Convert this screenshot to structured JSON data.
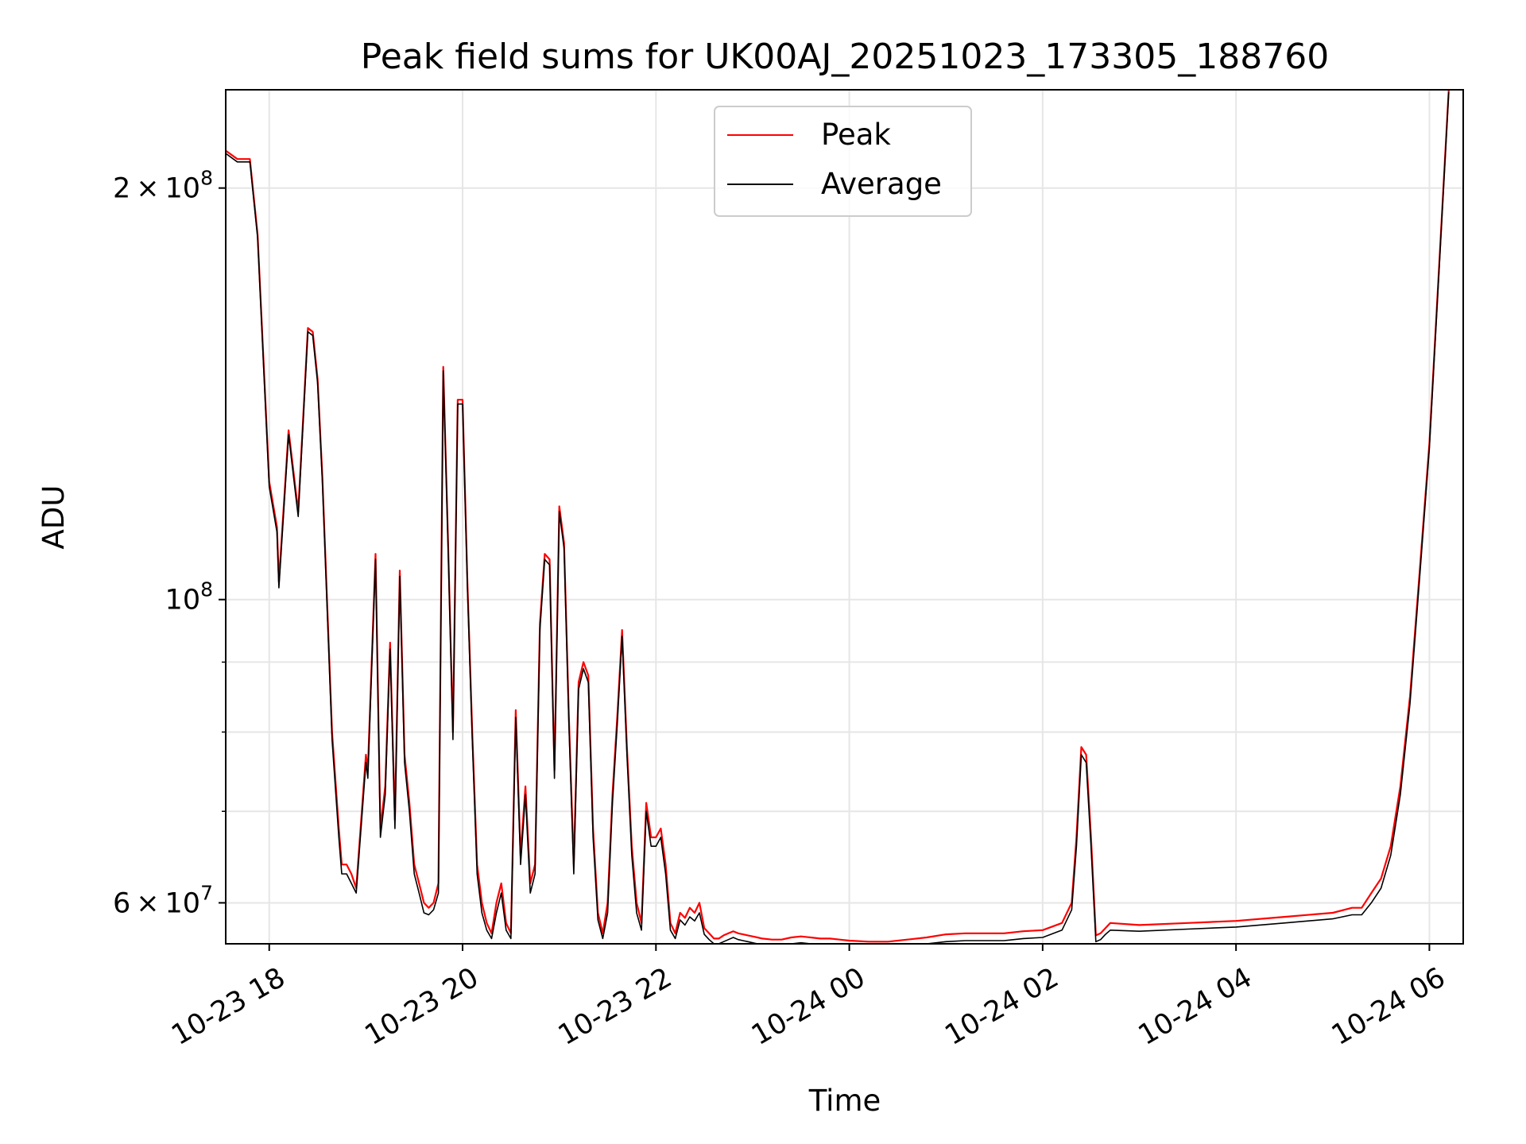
{
  "chart_data": {
    "type": "line",
    "title": "Peak field sums for UK00AJ_20251023_173305_188760",
    "xlabel": "Time",
    "ylabel": "ADU",
    "yscale": "log",
    "xlim": [
      17.55,
      30.35
    ],
    "ylim": [
      56000000,
      236000000
    ],
    "grid": true,
    "legend_position": "top-center",
    "x_ticks": [
      {
        "value": 18,
        "label": "10-23 18"
      },
      {
        "value": 20,
        "label": "10-23 20"
      },
      {
        "value": 22,
        "label": "10-23 22"
      },
      {
        "value": 24,
        "label": "10-24 00"
      },
      {
        "value": 26,
        "label": "10-24 02"
      },
      {
        "value": 28,
        "label": "10-24 04"
      },
      {
        "value": 30,
        "label": "10-24 06"
      }
    ],
    "y_major_ticks": [
      {
        "value": 60000000,
        "mantissa": "6",
        "exponent": "7"
      },
      {
        "value": 100000000,
        "mantissa": "",
        "exponent": "8"
      },
      {
        "value": 200000000,
        "mantissa": "2",
        "exponent": "8"
      }
    ],
    "y_minor_ticks": [
      70000000,
      80000000,
      90000000
    ],
    "x_unit": "hours since 2025-10-23 00:00",
    "series": [
      {
        "name": "Peak",
        "color": "#ff0000",
        "x": [
          17.55,
          17.67,
          17.8,
          17.88,
          18.0,
          18.08,
          18.1,
          18.2,
          18.3,
          18.4,
          18.45,
          18.5,
          18.55,
          18.65,
          18.72,
          18.75,
          18.8,
          18.85,
          18.9,
          19.0,
          19.02,
          19.1,
          19.15,
          19.2,
          19.25,
          19.3,
          19.35,
          19.4,
          19.45,
          19.5,
          19.55,
          19.6,
          19.65,
          19.7,
          19.75,
          19.8,
          19.85,
          19.9,
          19.95,
          20.0,
          20.05,
          20.1,
          20.15,
          20.2,
          20.25,
          20.3,
          20.35,
          20.4,
          20.45,
          20.5,
          20.55,
          20.6,
          20.65,
          20.7,
          20.75,
          20.8,
          20.85,
          20.9,
          20.95,
          21.0,
          21.05,
          21.1,
          21.15,
          21.2,
          21.25,
          21.3,
          21.35,
          21.4,
          21.45,
          21.5,
          21.55,
          21.6,
          21.65,
          21.7,
          21.75,
          21.8,
          21.85,
          21.9,
          21.95,
          22.0,
          22.05,
          22.1,
          22.15,
          22.2,
          22.25,
          22.3,
          22.35,
          22.4,
          22.45,
          22.5,
          22.55,
          22.6,
          22.65,
          22.7,
          22.75,
          22.8,
          22.85,
          22.9,
          22.95,
          23.0,
          23.05,
          23.1,
          23.2,
          23.3,
          23.4,
          23.5,
          23.6,
          23.7,
          23.8,
          23.9,
          24.0,
          24.2,
          24.4,
          24.6,
          24.8,
          25.0,
          25.2,
          25.4,
          25.6,
          25.8,
          26.0,
          26.2,
          26.3,
          26.35,
          26.4,
          26.45,
          26.5,
          26.55,
          26.6,
          26.65,
          26.7,
          27.0,
          27.5,
          28.0,
          28.5,
          29.0,
          29.2,
          29.3,
          29.4,
          29.5,
          29.6,
          29.7,
          29.8,
          29.9,
          30.0,
          30.1,
          30.2
        ],
        "y": [
          213000000,
          210000000,
          210000000,
          185000000,
          122000000,
          113000000,
          103000000,
          133000000,
          116000000,
          158000000,
          157000000,
          145000000,
          123000000,
          80000000,
          68000000,
          64000000,
          64000000,
          63000000,
          61500000,
          77000000,
          75000000,
          108000000,
          68000000,
          73000000,
          93000000,
          69000000,
          105000000,
          77000000,
          71000000,
          64000000,
          62000000,
          60000000,
          59500000,
          60000000,
          62000000,
          148000000,
          110000000,
          80000000,
          140000000,
          140000000,
          103000000,
          80000000,
          64000000,
          60000000,
          58000000,
          57000000,
          60000000,
          62000000,
          58000000,
          57000000,
          83000000,
          65000000,
          73000000,
          62000000,
          64000000,
          96000000,
          108000000,
          107000000,
          75000000,
          117000000,
          110000000,
          82000000,
          64000000,
          87000000,
          90000000,
          88000000,
          68000000,
          59000000,
          57000000,
          60000000,
          72000000,
          82000000,
          95000000,
          78000000,
          66000000,
          60000000,
          58000000,
          71000000,
          67000000,
          67000000,
          68000000,
          64000000,
          58000000,
          57000000,
          59000000,
          58500000,
          59500000,
          59000000,
          60000000,
          57500000,
          57000000,
          56500000,
          56500000,
          56800000,
          57000000,
          57200000,
          57000000,
          56900000,
          56800000,
          56700000,
          56600000,
          56500000,
          56400000,
          56400000,
          56600000,
          56700000,
          56600000,
          56500000,
          56500000,
          56400000,
          56300000,
          56200000,
          56200000,
          56400000,
          56600000,
          56900000,
          57000000,
          57000000,
          57000000,
          57200000,
          57300000,
          58000000,
          60000000,
          67000000,
          78000000,
          77000000,
          67000000,
          56800000,
          57000000,
          57500000,
          58000000,
          57800000,
          58000000,
          58200000,
          58600000,
          59000000,
          59500000,
          59500000,
          61000000,
          62500000,
          66000000,
          73000000,
          85000000,
          105000000,
          130000000,
          175000000,
          236000000
        ]
      },
      {
        "name": "Average",
        "color": "#000000",
        "x": [
          17.55,
          17.67,
          17.8,
          17.88,
          18.0,
          18.08,
          18.1,
          18.2,
          18.3,
          18.4,
          18.45,
          18.5,
          18.55,
          18.65,
          18.72,
          18.75,
          18.8,
          18.85,
          18.9,
          19.0,
          19.02,
          19.1,
          19.15,
          19.2,
          19.25,
          19.3,
          19.35,
          19.4,
          19.45,
          19.5,
          19.55,
          19.6,
          19.65,
          19.7,
          19.75,
          19.8,
          19.85,
          19.9,
          19.95,
          20.0,
          20.05,
          20.1,
          20.15,
          20.2,
          20.25,
          20.3,
          20.35,
          20.4,
          20.45,
          20.5,
          20.55,
          20.6,
          20.65,
          20.7,
          20.75,
          20.8,
          20.85,
          20.9,
          20.95,
          21.0,
          21.05,
          21.1,
          21.15,
          21.2,
          21.25,
          21.3,
          21.35,
          21.4,
          21.45,
          21.5,
          21.55,
          21.6,
          21.65,
          21.7,
          21.75,
          21.8,
          21.85,
          21.9,
          21.95,
          22.0,
          22.05,
          22.1,
          22.15,
          22.2,
          22.25,
          22.3,
          22.35,
          22.4,
          22.45,
          22.5,
          22.55,
          22.6,
          22.65,
          22.7,
          22.75,
          22.8,
          22.85,
          22.9,
          22.95,
          23.0,
          23.05,
          23.1,
          23.2,
          23.3,
          23.4,
          23.5,
          23.6,
          23.7,
          23.8,
          23.9,
          24.0,
          24.2,
          24.4,
          24.6,
          24.8,
          25.0,
          25.2,
          25.4,
          25.6,
          25.8,
          26.0,
          26.2,
          26.3,
          26.35,
          26.4,
          26.45,
          26.5,
          26.55,
          26.6,
          26.65,
          26.7,
          27.0,
          27.5,
          28.0,
          28.5,
          29.0,
          29.2,
          29.3,
          29.4,
          29.5,
          29.6,
          29.7,
          29.8,
          29.9,
          30.0,
          30.1,
          30.2
        ],
        "y": [
          212000000,
          209000000,
          209000000,
          184000000,
          121000000,
          112000000,
          102000000,
          132000000,
          115000000,
          157000000,
          156000000,
          144000000,
          122000000,
          79000000,
          67000000,
          63000000,
          63000000,
          62000000,
          61000000,
          76000000,
          74000000,
          107000000,
          67000000,
          72000000,
          92000000,
          68000000,
          104000000,
          76000000,
          70000000,
          63000000,
          61000000,
          59000000,
          58800000,
          59300000,
          61000000,
          147000000,
          109000000,
          79000000,
          139000000,
          139000000,
          102000000,
          79000000,
          63000000,
          59000000,
          57300000,
          56500000,
          59000000,
          61000000,
          57300000,
          56500000,
          82000000,
          64000000,
          72000000,
          61000000,
          63000000,
          95000000,
          107000000,
          106000000,
          74000000,
          116000000,
          109000000,
          81000000,
          63000000,
          86000000,
          89000000,
          87000000,
          67000000,
          58300000,
          56500000,
          59000000,
          71000000,
          81000000,
          94000000,
          77000000,
          65000000,
          59000000,
          57300000,
          70000000,
          66000000,
          66000000,
          67000000,
          63000000,
          57300000,
          56500000,
          58300000,
          57800000,
          58600000,
          58200000,
          59000000,
          56900000,
          56400000,
          56000000,
          56000000,
          56200000,
          56400000,
          56600000,
          56400000,
          56300000,
          56200000,
          56100000,
          56000000,
          55900000,
          55800000,
          55800000,
          56000000,
          56100000,
          56000000,
          55900000,
          55900000,
          55800000,
          55700000,
          55600000,
          55600000,
          55800000,
          56000000,
          56200000,
          56300000,
          56300000,
          56300000,
          56500000,
          56600000,
          57300000,
          59300000,
          66000000,
          77000000,
          76000000,
          66000000,
          56200000,
          56400000,
          56900000,
          57300000,
          57200000,
          57400000,
          57600000,
          58000000,
          58400000,
          58800000,
          58800000,
          60000000,
          61500000,
          65000000,
          72000000,
          84000000,
          104000000,
          129000000,
          174000000,
          235000000
        ]
      }
    ]
  }
}
